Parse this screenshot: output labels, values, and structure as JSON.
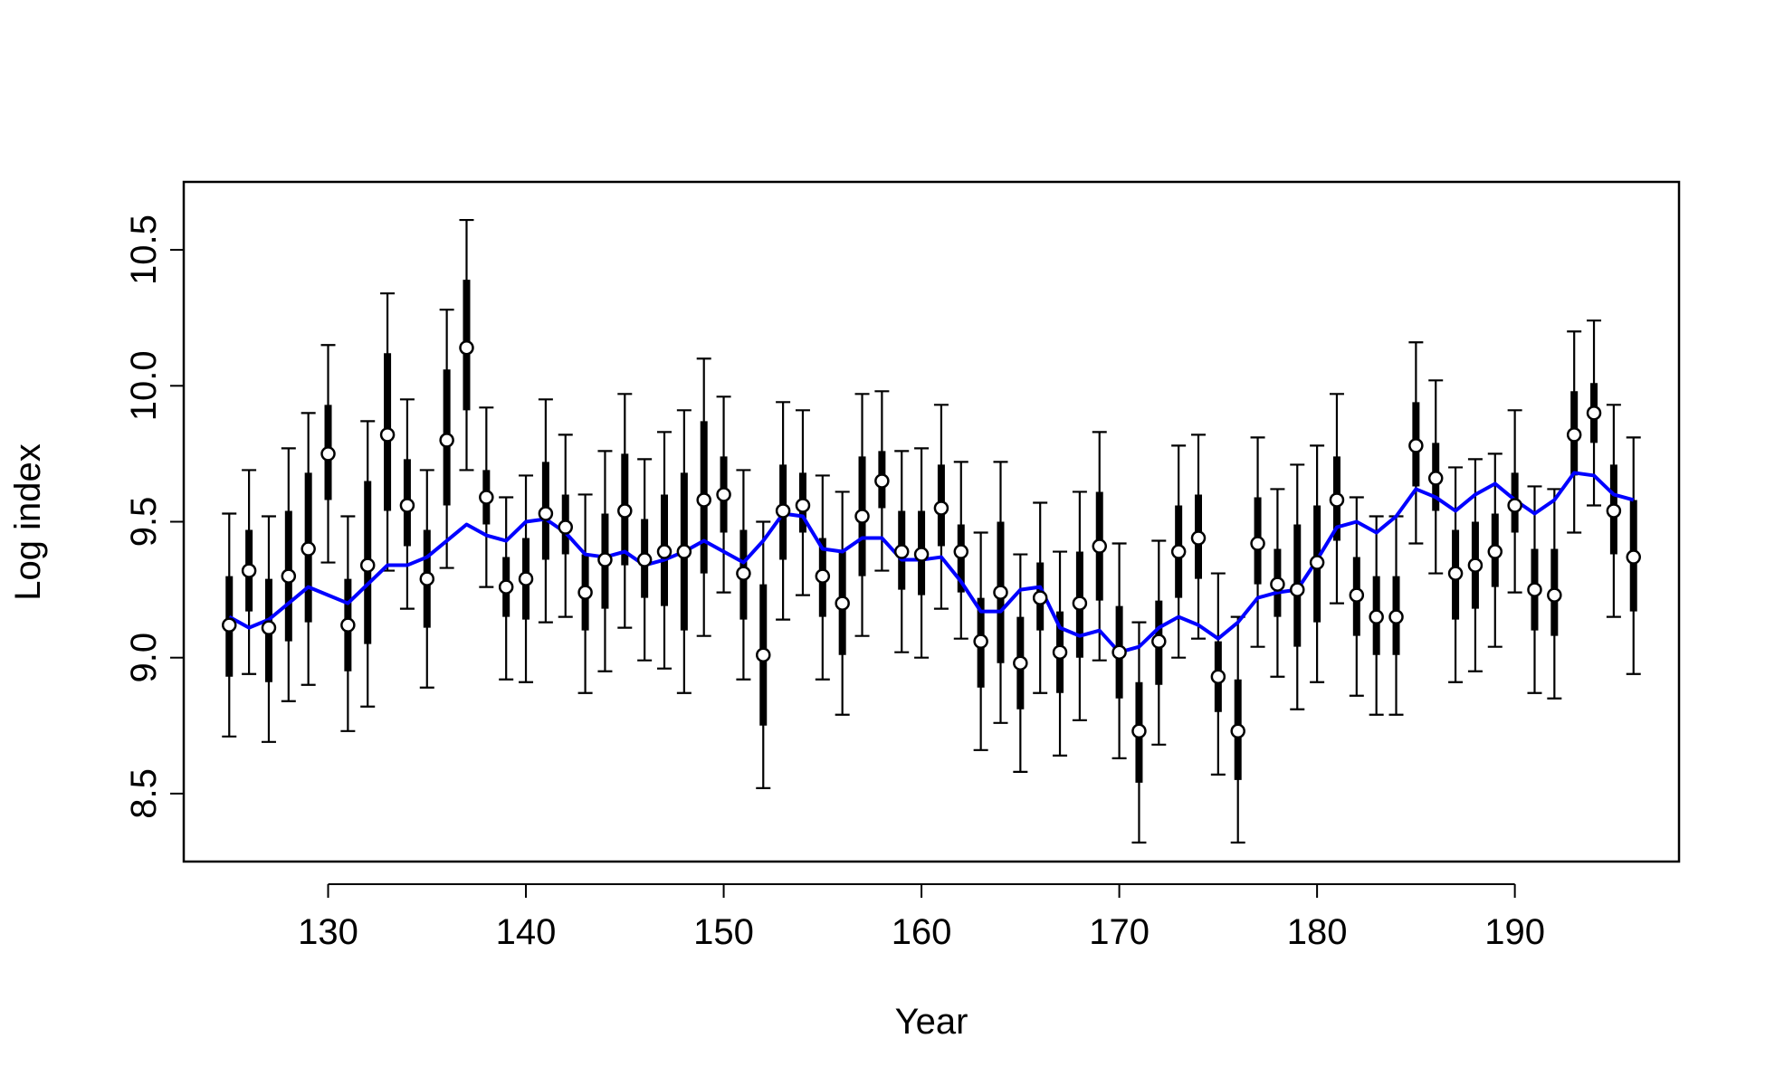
{
  "chart_data": {
    "type": "scatter",
    "title": "",
    "xlabel": "Year",
    "ylabel": "Log index",
    "xlim": [
      122.7,
      198.3
    ],
    "ylim": [
      8.25,
      10.75
    ],
    "xticks": [
      130,
      140,
      150,
      160,
      170,
      180,
      190
    ],
    "yticks": [
      8.5,
      9.0,
      9.5,
      10.0,
      10.5
    ],
    "xtick_labels": [
      "130",
      "140",
      "150",
      "160",
      "170",
      "180",
      "190"
    ],
    "ytick_labels": [
      "8.5",
      "9.0",
      "9.5",
      "10.0",
      "10.5"
    ],
    "grid": false,
    "legend": "none",
    "colors": {
      "points": "#000000",
      "trend": "#0000ff",
      "whiskers": "#000000"
    },
    "series": [
      {
        "kind": "observed-with-intervals",
        "x": [
          125,
          126,
          127,
          128,
          129,
          130,
          131,
          132,
          133,
          134,
          135,
          136,
          137,
          138,
          139,
          140,
          141,
          142,
          143,
          144,
          145,
          146,
          147,
          148,
          149,
          150,
          151,
          152,
          153,
          154,
          155,
          156,
          157,
          158,
          159,
          160,
          161,
          162,
          163,
          164,
          165,
          166,
          167,
          168,
          169,
          170,
          171,
          172,
          173,
          174,
          175,
          176,
          177,
          178,
          179,
          180,
          181,
          182,
          183,
          184,
          185,
          186,
          187,
          188,
          189,
          190,
          191,
          192,
          193,
          194,
          195,
          196
        ],
        "y": [
          9.12,
          9.32,
          9.11,
          9.3,
          9.4,
          9.75,
          9.12,
          9.34,
          9.82,
          9.56,
          9.29,
          9.8,
          10.14,
          9.59,
          9.26,
          9.29,
          9.53,
          9.48,
          9.24,
          9.36,
          9.54,
          9.36,
          9.39,
          9.39,
          9.58,
          9.6,
          9.31,
          9.01,
          9.54,
          9.56,
          9.3,
          9.2,
          9.52,
          9.65,
          9.39,
          9.38,
          9.55,
          9.39,
          9.06,
          9.24,
          8.98,
          9.22,
          9.02,
          9.2,
          9.41,
          9.02,
          8.73,
          9.06,
          9.39,
          9.44,
          8.93,
          8.73,
          9.42,
          9.27,
          9.25,
          9.35,
          9.58,
          9.23,
          9.15,
          9.15,
          9.78,
          9.66,
          9.31,
          9.34,
          9.39,
          9.56,
          9.25,
          9.23,
          9.82,
          9.9,
          9.54,
          9.37
        ],
        "lower_inner": [
          8.93,
          9.17,
          8.91,
          9.06,
          9.13,
          9.58,
          8.95,
          9.05,
          9.54,
          9.41,
          9.11,
          9.56,
          9.91,
          9.49,
          9.15,
          9.14,
          9.36,
          9.38,
          9.1,
          9.18,
          9.34,
          9.22,
          9.19,
          9.1,
          9.31,
          9.46,
          9.14,
          8.75,
          9.36,
          9.46,
          9.15,
          9.01,
          9.3,
          9.55,
          9.25,
          9.23,
          9.41,
          9.24,
          8.89,
          8.98,
          8.81,
          9.1,
          8.87,
          9.0,
          9.21,
          8.85,
          8.54,
          8.9,
          9.22,
          9.29,
          8.8,
          8.55,
          9.27,
          9.15,
          9.04,
          9.13,
          9.43,
          9.08,
          9.01,
          9.01,
          9.63,
          9.54,
          9.14,
          9.18,
          9.26,
          9.46,
          9.1,
          9.08,
          9.67,
          9.79,
          9.38,
          9.17
        ],
        "upper_inner": [
          9.3,
          9.47,
          9.29,
          9.54,
          9.68,
          9.93,
          9.29,
          9.65,
          10.12,
          9.73,
          9.47,
          10.06,
          10.39,
          9.69,
          9.37,
          9.44,
          9.72,
          9.6,
          9.38,
          9.53,
          9.75,
          9.51,
          9.6,
          9.68,
          9.87,
          9.74,
          9.47,
          9.27,
          9.71,
          9.68,
          9.44,
          9.39,
          9.74,
          9.76,
          9.54,
          9.54,
          9.71,
          9.49,
          9.22,
          9.5,
          9.15,
          9.35,
          9.17,
          9.39,
          9.61,
          9.19,
          8.91,
          9.21,
          9.56,
          9.6,
          9.06,
          8.92,
          9.59,
          9.4,
          9.49,
          9.56,
          9.74,
          9.37,
          9.3,
          9.3,
          9.94,
          9.79,
          9.47,
          9.5,
          9.53,
          9.68,
          9.4,
          9.4,
          9.98,
          10.01,
          9.71,
          9.58
        ],
        "lower_outer": [
          8.71,
          8.94,
          8.69,
          8.84,
          8.9,
          9.35,
          8.73,
          8.82,
          9.32,
          9.18,
          8.89,
          9.33,
          9.69,
          9.26,
          8.92,
          8.91,
          9.13,
          9.15,
          8.87,
          8.95,
          9.11,
          8.99,
          8.96,
          8.87,
          9.08,
          9.24,
          8.92,
          8.52,
          9.14,
          9.23,
          8.92,
          8.79,
          9.08,
          9.32,
          9.02,
          9.0,
          9.18,
          9.07,
          8.66,
          8.76,
          8.58,
          8.87,
          8.64,
          8.77,
          8.99,
          8.63,
          8.32,
          8.68,
          9.0,
          9.07,
          8.57,
          8.32,
          9.04,
          8.93,
          8.81,
          8.91,
          9.2,
          8.86,
          8.79,
          8.79,
          9.42,
          9.31,
          8.91,
          8.95,
          9.04,
          9.24,
          8.87,
          8.85,
          9.46,
          9.56,
          9.15,
          8.94
        ],
        "upper_outer": [
          9.53,
          9.69,
          9.52,
          9.77,
          9.9,
          10.15,
          9.52,
          9.87,
          10.34,
          9.95,
          9.69,
          10.28,
          10.61,
          9.92,
          9.59,
          9.67,
          9.95,
          9.82,
          9.6,
          9.76,
          9.97,
          9.73,
          9.83,
          9.91,
          10.1,
          9.96,
          9.69,
          9.5,
          9.94,
          9.91,
          9.67,
          9.61,
          9.97,
          9.98,
          9.76,
          9.77,
          9.93,
          9.72,
          9.46,
          9.72,
          9.38,
          9.57,
          9.39,
          9.61,
          9.83,
          9.42,
          9.13,
          9.43,
          9.78,
          9.82,
          9.31,
          9.15,
          9.81,
          9.62,
          9.71,
          9.78,
          9.97,
          9.59,
          9.52,
          9.52,
          10.16,
          10.02,
          9.7,
          9.73,
          9.75,
          9.91,
          9.63,
          9.62,
          10.2,
          10.24,
          9.93,
          9.81
        ]
      },
      {
        "kind": "trend-line",
        "x": [
          125,
          126,
          127,
          128,
          129,
          130,
          131,
          132,
          133,
          134,
          135,
          136,
          137,
          138,
          139,
          140,
          141,
          142,
          143,
          144,
          145,
          146,
          147,
          148,
          149,
          150,
          151,
          152,
          153,
          154,
          155,
          156,
          157,
          158,
          159,
          160,
          161,
          162,
          163,
          164,
          165,
          166,
          167,
          168,
          169,
          170,
          171,
          172,
          173,
          174,
          175,
          176,
          177,
          178,
          179,
          180,
          181,
          182,
          183,
          184,
          185,
          186,
          187,
          188,
          189,
          190,
          191,
          192,
          193,
          194,
          195,
          196
        ],
        "y": [
          9.15,
          9.11,
          9.14,
          9.2,
          9.26,
          9.23,
          9.2,
          9.27,
          9.34,
          9.34,
          9.37,
          9.43,
          9.49,
          9.45,
          9.43,
          9.5,
          9.51,
          9.46,
          9.38,
          9.37,
          9.39,
          9.34,
          9.36,
          9.39,
          9.43,
          9.39,
          9.35,
          9.43,
          9.53,
          9.52,
          9.4,
          9.39,
          9.44,
          9.44,
          9.36,
          9.36,
          9.37,
          9.28,
          9.17,
          9.17,
          9.25,
          9.26,
          9.11,
          9.08,
          9.1,
          9.02,
          9.04,
          9.11,
          9.15,
          9.12,
          9.07,
          9.13,
          9.22,
          9.24,
          9.25,
          9.36,
          9.48,
          9.5,
          9.46,
          9.52,
          9.62,
          9.59,
          9.54,
          9.6,
          9.64,
          9.58,
          9.53,
          9.58,
          9.68,
          9.67,
          9.6,
          9.58
        ]
      }
    ]
  }
}
